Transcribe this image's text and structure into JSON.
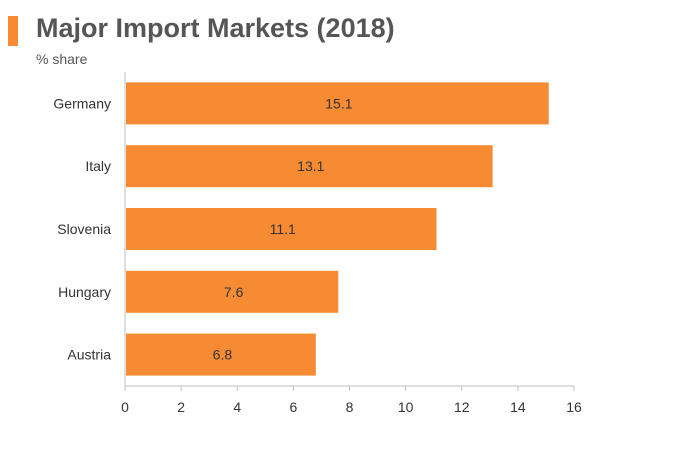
{
  "header": {
    "title": "Major Import Markets (2018)",
    "subtitle": "% share"
  },
  "colors": {
    "accent": "#f68b33",
    "bar": "#f68b33",
    "axis": "#bfbfbf",
    "text": "#333333"
  },
  "chart_data": {
    "type": "bar",
    "orientation": "horizontal",
    "title": "Major Import Markets (2018)",
    "subtitle": "% share",
    "categories": [
      "Germany",
      "Italy",
      "Slovenia",
      "Hungary",
      "Austria"
    ],
    "values": [
      15.1,
      13.1,
      11.1,
      7.6,
      6.8
    ],
    "data_labels": [
      "15.1",
      "13.1",
      "11.1",
      "7.6",
      "6.8"
    ],
    "xlim": [
      0,
      16
    ],
    "xticks": [
      0,
      2,
      4,
      6,
      8,
      10,
      12,
      14,
      16
    ],
    "xlabel": "",
    "ylabel": "",
    "grid": false,
    "legend": "none"
  }
}
